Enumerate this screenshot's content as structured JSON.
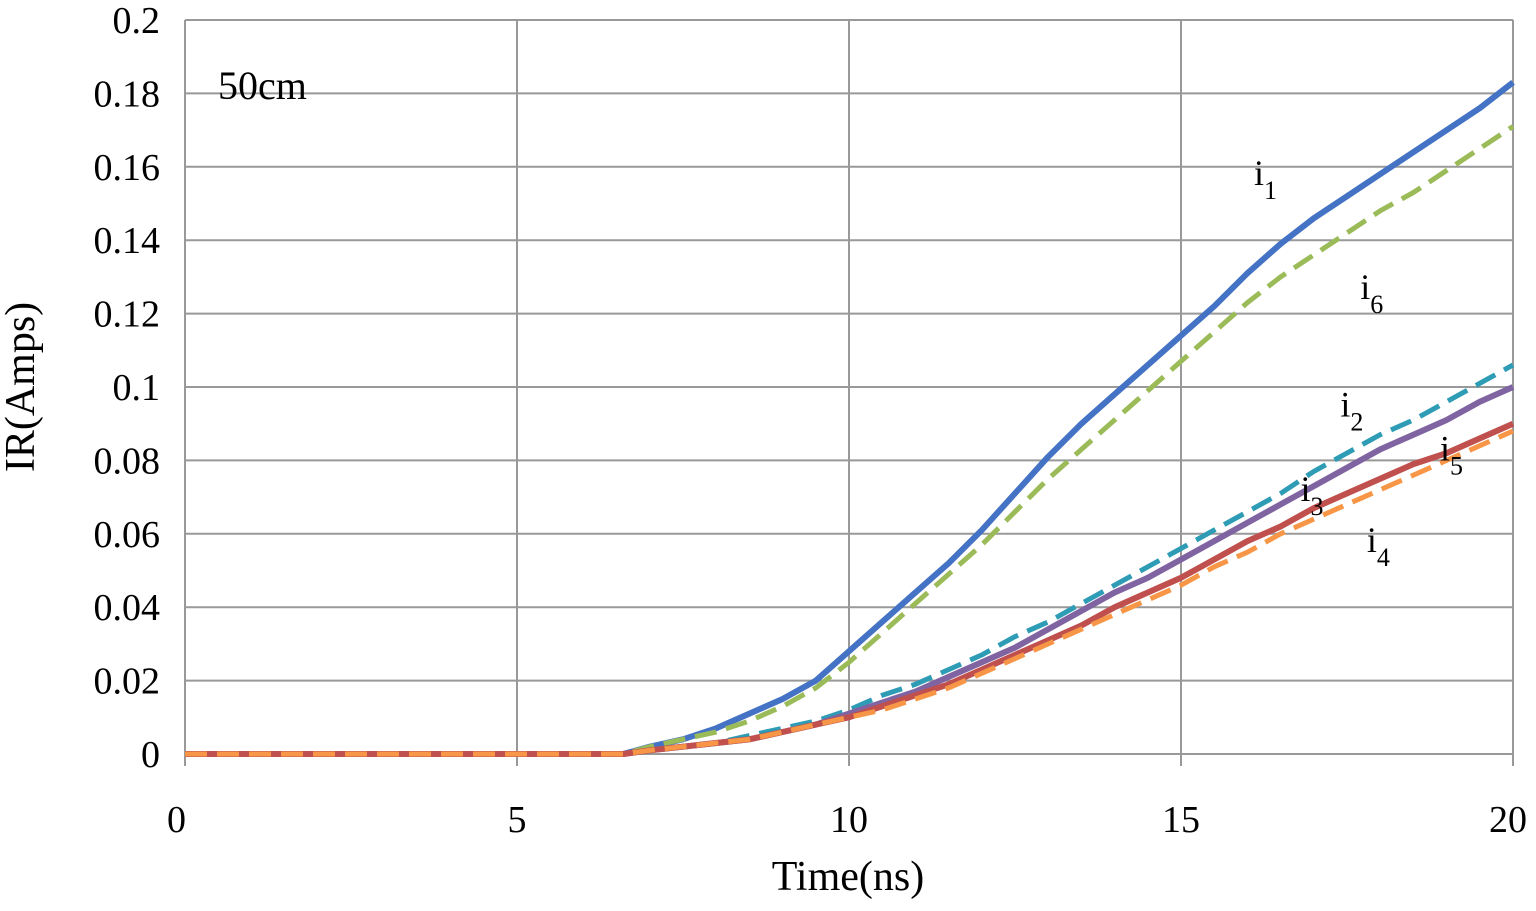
{
  "chart_data": {
    "type": "line",
    "title": "",
    "annotation": "50cm",
    "xlabel": "Time(ns)",
    "ylabel": "IR(Amps)",
    "xlim": [
      0,
      20
    ],
    "ylim": [
      0,
      0.2
    ],
    "xticks": [
      "0",
      "5",
      "10",
      "15",
      "20"
    ],
    "yticks": [
      "0",
      "0.02",
      "0.04",
      "0.06",
      "0.08",
      "0.1",
      "0.12",
      "0.14",
      "0.16",
      "0.18",
      "0.2"
    ],
    "grid": true,
    "legend": "none",
    "series": [
      {
        "name": "i1",
        "label": "i",
        "sub": "1",
        "color": "#4472C4",
        "dashed": false,
        "x": [
          0,
          6.6,
          7,
          7.5,
          8,
          8.5,
          9,
          9.5,
          10,
          10.5,
          11,
          11.5,
          12,
          12.5,
          13,
          13.5,
          14,
          14.5,
          15,
          15.5,
          16,
          16.5,
          17,
          17.5,
          18,
          18.5,
          19,
          19.5,
          20
        ],
        "y": [
          0,
          0,
          0.002,
          0.004,
          0.007,
          0.011,
          0.015,
          0.02,
          0.028,
          0.036,
          0.044,
          0.052,
          0.061,
          0.071,
          0.081,
          0.09,
          0.098,
          0.106,
          0.114,
          0.122,
          0.131,
          0.139,
          0.146,
          0.152,
          0.158,
          0.164,
          0.17,
          0.176,
          0.183
        ]
      },
      {
        "name": "i6",
        "label": "i",
        "sub": "6",
        "color": "#9BBB59",
        "dashed": true,
        "x": [
          0,
          6.6,
          7,
          7.5,
          8,
          8.5,
          9,
          9.5,
          10,
          10.5,
          11,
          11.5,
          12,
          12.5,
          13,
          13.5,
          14,
          14.5,
          15,
          15.5,
          16,
          16.5,
          17,
          17.5,
          18,
          18.5,
          19,
          19.5,
          20
        ],
        "y": [
          0,
          0,
          0.002,
          0.004,
          0.006,
          0.009,
          0.013,
          0.018,
          0.025,
          0.033,
          0.041,
          0.049,
          0.057,
          0.066,
          0.075,
          0.083,
          0.091,
          0.099,
          0.107,
          0.115,
          0.123,
          0.13,
          0.136,
          0.142,
          0.148,
          0.153,
          0.159,
          0.165,
          0.171
        ]
      },
      {
        "name": "i2",
        "label": "i",
        "sub": "2",
        "color": "#2E9CB5",
        "dashed": true,
        "x": [
          0,
          6.6,
          7,
          7.5,
          8,
          8.5,
          9,
          9.5,
          10,
          10.5,
          11,
          11.5,
          12,
          12.5,
          13,
          13.5,
          14,
          14.5,
          15,
          15.5,
          16,
          16.5,
          17,
          17.5,
          18,
          18.5,
          19,
          19.5,
          20
        ],
        "y": [
          0,
          0,
          0.001,
          0.002,
          0.003,
          0.005,
          0.007,
          0.009,
          0.012,
          0.016,
          0.019,
          0.023,
          0.027,
          0.032,
          0.036,
          0.041,
          0.046,
          0.051,
          0.056,
          0.061,
          0.066,
          0.071,
          0.077,
          0.082,
          0.087,
          0.091,
          0.096,
          0.101,
          0.106
        ]
      },
      {
        "name": "i3",
        "label": "i",
        "sub": "3",
        "color": "#8064A2",
        "dashed": false,
        "x": [
          0,
          6.6,
          7,
          7.5,
          8,
          8.5,
          9,
          9.5,
          10,
          10.5,
          11,
          11.5,
          12,
          12.5,
          13,
          13.5,
          14,
          14.5,
          15,
          15.5,
          16,
          16.5,
          17,
          17.5,
          18,
          18.5,
          19,
          19.5,
          20
        ],
        "y": [
          0,
          0,
          0.001,
          0.002,
          0.003,
          0.004,
          0.006,
          0.008,
          0.011,
          0.014,
          0.017,
          0.021,
          0.025,
          0.029,
          0.034,
          0.039,
          0.044,
          0.048,
          0.053,
          0.058,
          0.063,
          0.068,
          0.073,
          0.078,
          0.083,
          0.087,
          0.091,
          0.096,
          0.1
        ]
      },
      {
        "name": "i5",
        "label": "i",
        "sub": "5",
        "color": "#C0504D",
        "dashed": false,
        "x": [
          0,
          6.6,
          7,
          7.5,
          8,
          8.5,
          9,
          9.5,
          10,
          10.5,
          11,
          11.5,
          12,
          12.5,
          13,
          13.5,
          14,
          14.5,
          15,
          15.5,
          16,
          16.5,
          17,
          17.5,
          18,
          18.5,
          19,
          19.5,
          20
        ],
        "y": [
          0,
          0,
          0.001,
          0.002,
          0.003,
          0.004,
          0.006,
          0.008,
          0.01,
          0.013,
          0.016,
          0.019,
          0.023,
          0.027,
          0.031,
          0.035,
          0.04,
          0.044,
          0.048,
          0.053,
          0.058,
          0.062,
          0.067,
          0.071,
          0.075,
          0.079,
          0.082,
          0.086,
          0.09
        ]
      },
      {
        "name": "i4",
        "label": "i",
        "sub": "4",
        "color": "#F79646",
        "dashed": true,
        "x": [
          0,
          6.6,
          7,
          7.5,
          8,
          8.5,
          9,
          9.5,
          10,
          10.5,
          11,
          11.5,
          12,
          12.5,
          13,
          13.5,
          14,
          14.5,
          15,
          15.5,
          16,
          16.5,
          17,
          17.5,
          18,
          18.5,
          19,
          19.5,
          20
        ],
        "y": [
          0,
          0,
          0.001,
          0.002,
          0.003,
          0.004,
          0.006,
          0.008,
          0.01,
          0.012,
          0.015,
          0.018,
          0.022,
          0.026,
          0.03,
          0.034,
          0.038,
          0.042,
          0.046,
          0.051,
          0.055,
          0.06,
          0.064,
          0.068,
          0.072,
          0.076,
          0.08,
          0.084,
          0.088
        ]
      }
    ],
    "labels": [
      {
        "series": "i1",
        "at": [
          16.1,
          0.155
        ]
      },
      {
        "series": "i6",
        "at": [
          17.7,
          0.124
        ]
      },
      {
        "series": "i2",
        "at": [
          17.4,
          0.092
        ]
      },
      {
        "series": "i3",
        "at": [
          16.8,
          0.069
        ]
      },
      {
        "series": "i4",
        "at": [
          17.8,
          0.055
        ]
      },
      {
        "series": "i5",
        "at": [
          18.9,
          0.08
        ]
      }
    ]
  }
}
